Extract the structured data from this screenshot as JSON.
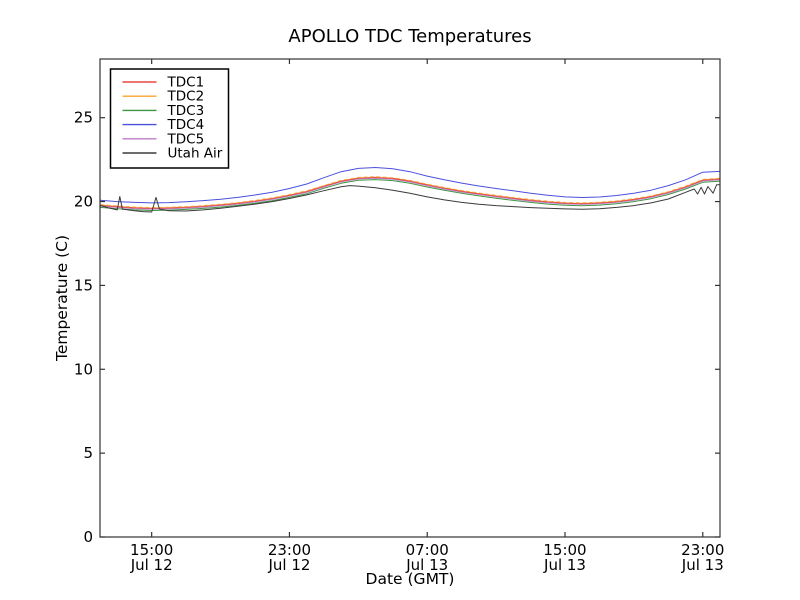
{
  "figure": {
    "title": "APOLLO TDC Temperatures",
    "xlabel": "Date (GMT)",
    "ylabel": "Temperature (C)",
    "background_color": "#ffffff",
    "spine_color": "#333333"
  },
  "chart_data": {
    "type": "line",
    "title": "APOLLO TDC Temperatures",
    "xlabel": "Date (GMT)",
    "ylabel": "Temperature (C)",
    "grid": false,
    "legend_position": "upper left",
    "x_unit": "hours after Jul 12 12:00 GMT",
    "xlim": [
      0,
      36
    ],
    "ylim": [
      0,
      28.5
    ],
    "yticks": [
      0,
      5,
      10,
      15,
      20,
      25
    ],
    "xticks": [
      {
        "hour": 3,
        "time": "15:00",
        "date": "Jul 12"
      },
      {
        "hour": 11,
        "time": "23:00",
        "date": "Jul 12"
      },
      {
        "hour": 19,
        "time": "07:00",
        "date": "Jul 13"
      },
      {
        "hour": 27,
        "time": "15:00",
        "date": "Jul 13"
      },
      {
        "hour": 35,
        "time": "23:00",
        "date": "Jul 13"
      }
    ],
    "series": [
      {
        "name": "TDC1",
        "color": "#e8483f",
        "dashed": false,
        "x": [
          0,
          1,
          2,
          3,
          4,
          5,
          6,
          7,
          8,
          9,
          10,
          11,
          12,
          13,
          14,
          15,
          16,
          17,
          18,
          19,
          20,
          21,
          22,
          23,
          24,
          25,
          26,
          27,
          28,
          29,
          30,
          31,
          32,
          33,
          34,
          35,
          36
        ],
        "y": [
          19.78,
          19.7,
          19.63,
          19.6,
          19.62,
          19.66,
          19.72,
          19.8,
          19.9,
          20.03,
          20.18,
          20.38,
          20.6,
          20.92,
          21.22,
          21.4,
          21.44,
          21.38,
          21.22,
          21.0,
          20.8,
          20.62,
          20.47,
          20.33,
          20.2,
          20.08,
          19.98,
          19.91,
          19.88,
          19.92,
          20.0,
          20.13,
          20.3,
          20.55,
          20.88,
          21.28,
          21.35
        ]
      },
      {
        "name": "TDC2",
        "color": "#f9a431",
        "dashed": true,
        "x": [
          0,
          1,
          2,
          3,
          4,
          5,
          6,
          7,
          8,
          9,
          10,
          11,
          12,
          13,
          14,
          15,
          16,
          17,
          18,
          19,
          20,
          21,
          22,
          23,
          24,
          25,
          26,
          27,
          28,
          29,
          30,
          31,
          32,
          33,
          34,
          35,
          36
        ],
        "y": [
          19.82,
          19.74,
          19.67,
          19.64,
          19.66,
          19.7,
          19.76,
          19.84,
          19.94,
          20.07,
          20.22,
          20.42,
          20.64,
          20.96,
          21.26,
          21.44,
          21.48,
          21.42,
          21.26,
          21.04,
          20.84,
          20.66,
          20.51,
          20.37,
          20.24,
          20.12,
          20.02,
          19.95,
          19.92,
          19.96,
          20.04,
          20.17,
          20.34,
          20.59,
          20.92,
          21.32,
          21.39
        ]
      },
      {
        "name": "TDC3",
        "color": "#3e9546",
        "dashed": false,
        "x": [
          0,
          1,
          2,
          3,
          4,
          5,
          6,
          7,
          8,
          9,
          10,
          11,
          12,
          13,
          14,
          15,
          16,
          17,
          18,
          19,
          20,
          21,
          22,
          23,
          24,
          25,
          26,
          27,
          28,
          29,
          30,
          31,
          32,
          33,
          34,
          35,
          36
        ],
        "y": [
          19.65,
          19.57,
          19.5,
          19.47,
          19.49,
          19.53,
          19.59,
          19.67,
          19.77,
          19.9,
          20.05,
          20.25,
          20.47,
          20.79,
          21.09,
          21.27,
          21.31,
          21.25,
          21.09,
          20.87,
          20.67,
          20.49,
          20.34,
          20.2,
          20.07,
          19.95,
          19.85,
          19.78,
          19.75,
          19.79,
          19.87,
          20.0,
          20.17,
          20.42,
          20.75,
          21.15,
          21.22
        ]
      },
      {
        "name": "TDC4",
        "color": "#4b50dd",
        "dashed": false,
        "x": [
          0,
          1,
          2,
          3,
          4,
          5,
          6,
          7,
          8,
          9,
          10,
          11,
          12,
          13,
          14,
          15,
          16,
          17,
          18,
          19,
          20,
          21,
          22,
          23,
          24,
          25,
          26,
          27,
          28,
          29,
          30,
          31,
          32,
          33,
          34,
          35,
          36
        ],
        "y": [
          20.08,
          20.0,
          19.95,
          19.92,
          19.94,
          19.99,
          20.06,
          20.14,
          20.25,
          20.39,
          20.56,
          20.78,
          21.05,
          21.42,
          21.78,
          21.98,
          22.03,
          21.96,
          21.78,
          21.52,
          21.3,
          21.1,
          20.93,
          20.78,
          20.64,
          20.5,
          20.38,
          20.28,
          20.24,
          20.27,
          20.36,
          20.5,
          20.68,
          20.95,
          21.3,
          21.75,
          21.8
        ]
      },
      {
        "name": "TDC5",
        "color": "#bd7cc4",
        "dashed": false,
        "x": [
          0,
          1,
          2,
          3,
          4,
          5,
          6,
          7,
          8,
          9,
          10,
          11,
          12,
          13,
          14,
          15,
          16,
          17,
          18,
          19,
          20,
          21,
          22,
          23,
          24,
          25,
          26,
          27,
          28,
          29,
          30,
          31,
          32,
          33,
          34,
          35,
          36
        ],
        "y": [
          19.73,
          19.65,
          19.58,
          19.55,
          19.57,
          19.61,
          19.67,
          19.75,
          19.85,
          19.98,
          20.13,
          20.33,
          20.55,
          20.87,
          21.17,
          21.35,
          21.39,
          21.33,
          21.17,
          20.95,
          20.75,
          20.57,
          20.42,
          20.28,
          20.15,
          20.03,
          19.93,
          19.86,
          19.83,
          19.87,
          19.95,
          20.08,
          20.25,
          20.5,
          20.83,
          21.23,
          21.3
        ]
      },
      {
        "name": "Utah Air",
        "color": "#3b3b3b",
        "dashed": false,
        "x": [
          0,
          0.5,
          1.0,
          1.15,
          1.3,
          2.0,
          2.5,
          3.0,
          3.25,
          3.45,
          4.0,
          5,
          6,
          7,
          8,
          9,
          10,
          11,
          12,
          13,
          14,
          14.5,
          15,
          16,
          17,
          18,
          19,
          20,
          21,
          22,
          23,
          24,
          25,
          26,
          27,
          28,
          29,
          30,
          31,
          32,
          33,
          34,
          34.5,
          34.7,
          34.9,
          35.1,
          35.3,
          35.6,
          35.8,
          36
        ],
        "y": [
          19.78,
          19.62,
          19.5,
          20.3,
          19.55,
          19.45,
          19.4,
          19.38,
          20.25,
          19.55,
          19.45,
          19.44,
          19.5,
          19.6,
          19.72,
          19.85,
          20.0,
          20.18,
          20.4,
          20.65,
          20.88,
          20.95,
          20.92,
          20.82,
          20.68,
          20.5,
          20.28,
          20.1,
          19.95,
          19.84,
          19.76,
          19.7,
          19.64,
          19.6,
          19.56,
          19.54,
          19.57,
          19.65,
          19.76,
          19.92,
          20.15,
          20.55,
          20.75,
          20.45,
          20.85,
          20.45,
          20.9,
          20.5,
          21.0,
          21.0
        ]
      }
    ],
    "legend": [
      {
        "label": "TDC1",
        "color": "#e8483f"
      },
      {
        "label": "TDC2",
        "color": "#f9a431"
      },
      {
        "label": "TDC3",
        "color": "#3e9546"
      },
      {
        "label": "TDC4",
        "color": "#4b50dd"
      },
      {
        "label": "TDC5",
        "color": "#bd7cc4"
      },
      {
        "label": "Utah Air",
        "color": "#3b3b3b"
      }
    ]
  }
}
